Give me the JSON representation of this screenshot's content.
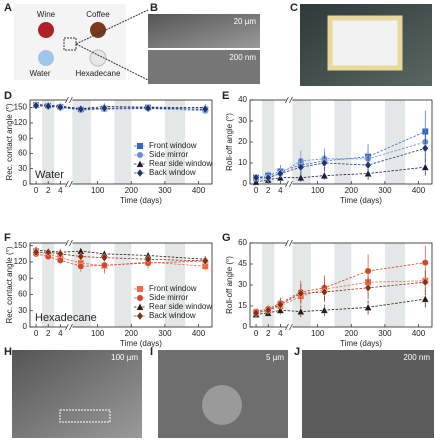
{
  "panels": {
    "a": "A",
    "b": "B",
    "c": "C",
    "d": "D",
    "e": "E",
    "f": "F",
    "g": "G",
    "h": "H",
    "i": "I",
    "j": "J"
  },
  "photo_a": {
    "labels": [
      "Wine",
      "Coffee",
      "Water",
      "Hexadecane"
    ]
  },
  "scale_bars": {
    "b_top": "20 µm",
    "b_bottom": "200 nm",
    "h": "100 µm",
    "i": "5 µm",
    "j": "200 nm"
  },
  "chart_data": [
    {
      "type": "line",
      "ylabel": "Rec. contact angle (°)",
      "xlabel": "Time (days)",
      "annotation": "Water",
      "annotation_color": "#2a58b8",
      "x": [
        0,
        2,
        4,
        50,
        120,
        250,
        420
      ],
      "xlim": [
        -1,
        440
      ],
      "xbreak": [
        5,
        25
      ],
      "xticks": [
        0,
        2,
        4,
        100,
        200,
        300,
        400
      ],
      "ylim": [
        0,
        165
      ],
      "yticks": [
        0,
        30,
        60,
        90,
        120,
        150
      ],
      "bands": [
        [
          1,
          3
        ],
        [
          25,
          80
        ],
        [
          150,
          200
        ],
        [
          300,
          360
        ]
      ],
      "legend": "lower right",
      "series": [
        {
          "name": "Front window",
          "color": "#3566c0",
          "marker": "square",
          "values": [
            155,
            153,
            151,
            146,
            148,
            150,
            146
          ],
          "errors": [
            3,
            4,
            4,
            5,
            5,
            8,
            6
          ]
        },
        {
          "name": "Side mirror",
          "color": "#6b8fd6",
          "marker": "circle",
          "values": [
            154,
            152,
            150,
            145,
            147,
            148,
            144
          ],
          "errors": [
            3,
            3,
            4,
            5,
            6,
            7,
            6
          ]
        },
        {
          "name": "Rear side window",
          "color": "#15193a",
          "marker": "triangle",
          "values": [
            156,
            155,
            153,
            148,
            152,
            151,
            150
          ],
          "errors": [
            3,
            3,
            3,
            4,
            5,
            6,
            5
          ]
        },
        {
          "name": "Back window",
          "color": "#1f3475",
          "marker": "diamond",
          "values": [
            154,
            153,
            151,
            147,
            149,
            149,
            147
          ],
          "errors": [
            3,
            3,
            4,
            4,
            5,
            6,
            6
          ]
        }
      ]
    },
    {
      "type": "line",
      "ylabel": "Roll-off angle (°)",
      "xlabel": "Time (days)",
      "x": [
        0,
        2,
        4,
        50,
        120,
        250,
        420
      ],
      "xlim": [
        -1,
        440
      ],
      "xbreak": [
        5,
        25
      ],
      "xticks": [
        0,
        2,
        4,
        100,
        200,
        300,
        400
      ],
      "ylim": [
        0,
        40
      ],
      "yticks": [
        0,
        10,
        20,
        30,
        40
      ],
      "bands": [
        [
          1,
          3
        ],
        [
          25,
          80
        ],
        [
          150,
          200
        ],
        [
          300,
          360
        ]
      ],
      "series": [
        {
          "color": "#3566c0",
          "marker": "square",
          "values": [
            3,
            4,
            6,
            9,
            11,
            13,
            25
          ],
          "errors": [
            1,
            2,
            3,
            4,
            5,
            6,
            10
          ]
        },
        {
          "color": "#6b8fd6",
          "marker": "circle",
          "values": [
            2,
            3,
            5,
            11,
            12,
            12,
            20
          ],
          "errors": [
            1,
            2,
            3,
            5,
            5,
            6,
            8
          ]
        },
        {
          "color": "#15193a",
          "marker": "triangle",
          "values": [
            1,
            2,
            3,
            3,
            4,
            5,
            8
          ],
          "errors": [
            1,
            1,
            2,
            2,
            2,
            3,
            4
          ]
        },
        {
          "color": "#1f3475",
          "marker": "diamond",
          "values": [
            3,
            3,
            5,
            8,
            10,
            9,
            17
          ],
          "errors": [
            1,
            2,
            2,
            4,
            4,
            5,
            7
          ]
        }
      ]
    },
    {
      "type": "line",
      "ylabel": "Rec. contact angle (°)",
      "xlabel": "Time (days)",
      "annotation": "Hexadecane",
      "annotation_color": "#e0502e",
      "x": [
        0,
        2,
        4,
        50,
        120,
        250,
        420
      ],
      "xlim": [
        -1,
        440
      ],
      "xbreak": [
        5,
        25
      ],
      "xticks": [
        0,
        2,
        4,
        100,
        200,
        300,
        400
      ],
      "ylim": [
        0,
        155
      ],
      "yticks": [
        0,
        30,
        60,
        90,
        120,
        150
      ],
      "bands": [
        [
          1,
          3
        ],
        [
          25,
          80
        ],
        [
          150,
          200
        ],
        [
          300,
          360
        ]
      ],
      "legend": "lower right",
      "series": [
        {
          "name": "Front window",
          "color": "#ee6a45",
          "marker": "square",
          "values": [
            140,
            135,
            128,
            118,
            113,
            120,
            112
          ],
          "errors": [
            5,
            6,
            7,
            12,
            15,
            10,
            8
          ]
        },
        {
          "name": "Side mirror",
          "color": "#d2462a",
          "marker": "circle",
          "values": [
            135,
            130,
            123,
            112,
            114,
            118,
            122
          ],
          "errors": [
            5,
            6,
            7,
            10,
            12,
            10,
            8
          ]
        },
        {
          "name": "Rear side window",
          "color": "#2a1a10",
          "marker": "triangle",
          "values": [
            142,
            140,
            138,
            140,
            135,
            132,
            125
          ],
          "errors": [
            4,
            4,
            5,
            6,
            6,
            6,
            6
          ]
        },
        {
          "name": "Back window",
          "color": "#8b2c14",
          "marker": "diamond",
          "values": [
            138,
            138,
            135,
            130,
            128,
            125,
            122
          ],
          "errors": [
            4,
            5,
            5,
            6,
            7,
            7,
            7
          ]
        }
      ]
    },
    {
      "type": "line",
      "ylabel": "Roll-off angle (°)",
      "xlabel": "Time (days)",
      "x": [
        0,
        2,
        4,
        50,
        120,
        250,
        420
      ],
      "xlim": [
        -1,
        440
      ],
      "xbreak": [
        5,
        25
      ],
      "xticks": [
        0,
        2,
        4,
        100,
        200,
        300,
        400
      ],
      "ylim": [
        0,
        60
      ],
      "yticks": [
        0,
        15,
        30,
        45,
        60
      ],
      "bands": [
        [
          1,
          3
        ],
        [
          25,
          80
        ],
        [
          150,
          200
        ],
        [
          300,
          360
        ]
      ],
      "series": [
        {
          "color": "#ee6a45",
          "marker": "square",
          "values": [
            10,
            12,
            15,
            22,
            27,
            32,
            33
          ],
          "errors": [
            2,
            3,
            4,
            8,
            8,
            9,
            8
          ]
        },
        {
          "color": "#d2462a",
          "marker": "circle",
          "values": [
            11,
            13,
            17,
            25,
            28,
            40,
            46
          ],
          "errors": [
            2,
            3,
            4,
            8,
            9,
            12,
            12
          ]
        },
        {
          "color": "#2a1a10",
          "marker": "triangle",
          "values": [
            9,
            10,
            12,
            11,
            12,
            14,
            20
          ],
          "errors": [
            2,
            2,
            3,
            4,
            4,
            5,
            6
          ]
        },
        {
          "color": "#8b2c14",
          "marker": "diamond",
          "values": [
            10,
            12,
            16,
            24,
            25,
            28,
            32
          ],
          "errors": [
            2,
            3,
            4,
            7,
            7,
            8,
            8
          ]
        }
      ]
    }
  ]
}
